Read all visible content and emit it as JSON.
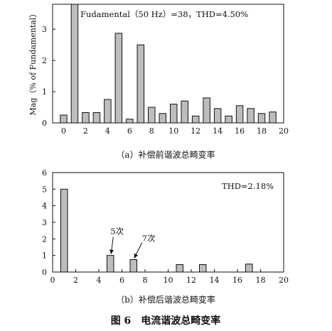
{
  "figure_title": "图 6　电流谐波总畸变率",
  "chart_data": [
    {
      "type": "bar",
      "id": "a",
      "annotation": "Fudamental（50 Hz）=38，THD=4.50%",
      "ylabel": "Mag（% of Fundamental）",
      "caption": "（a）补偿前谐波总畸变率",
      "xlim": [
        -1,
        20
      ],
      "ylim": [
        0,
        3.8
      ],
      "xticks": [
        0,
        2,
        4,
        6,
        8,
        10,
        12,
        14,
        16,
        18,
        20
      ],
      "yticks": [
        0,
        1,
        2,
        3
      ],
      "x": [
        0,
        1,
        2,
        3,
        4,
        5,
        6,
        7,
        8,
        9,
        10,
        11,
        12,
        13,
        14,
        15,
        16,
        17,
        18,
        19
      ],
      "values": [
        0.25,
        3.8,
        0.33,
        0.33,
        0.75,
        2.87,
        0.12,
        2.5,
        0.5,
        0.3,
        0.6,
        0.7,
        0.22,
        0.8,
        0.46,
        0.22,
        0.55,
        0.46,
        0.3,
        0.35
      ]
    },
    {
      "type": "bar",
      "id": "b",
      "annotation": "THD=2.18%",
      "caption": "（b）补偿后谐波总畸变率",
      "xlim": [
        0,
        20
      ],
      "ylim": [
        0,
        6
      ],
      "xticks": [
        0,
        2,
        4,
        6,
        8,
        10,
        12,
        14,
        16,
        18,
        20
      ],
      "yticks": [
        0,
        1,
        2,
        3,
        4,
        5,
        6
      ],
      "x": [
        1,
        5,
        7,
        11,
        13,
        17
      ],
      "values": [
        5.0,
        1.0,
        0.75,
        0.45,
        0.45,
        0.48
      ],
      "callouts": [
        {
          "label": "5次",
          "x": 5
        },
        {
          "label": "7次",
          "x": 7
        }
      ]
    }
  ]
}
